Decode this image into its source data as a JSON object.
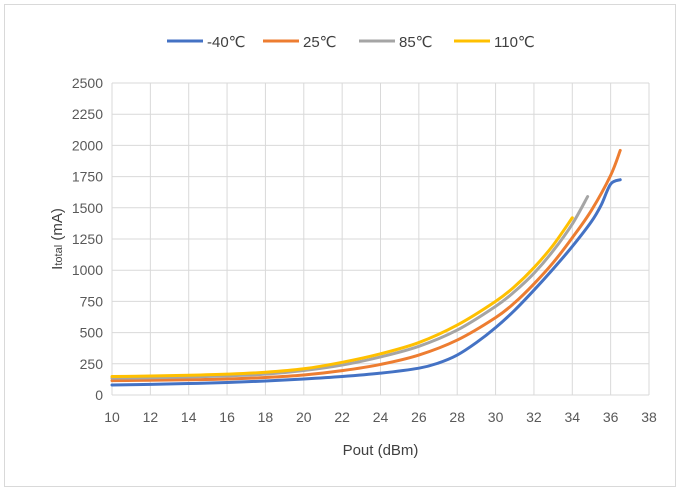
{
  "chart_data": {
    "type": "line",
    "title": "",
    "xlabel": "Pout (dBm)",
    "ylabel_main": "I",
    "ylabel_sub": "total",
    "ylabel_unit": " (mA)",
    "xlim": [
      10,
      38
    ],
    "ylim": [
      0,
      2500
    ],
    "xticks": [
      10,
      12,
      14,
      16,
      18,
      20,
      22,
      24,
      26,
      28,
      30,
      32,
      34,
      36,
      38
    ],
    "yticks": [
      0,
      250,
      500,
      750,
      1000,
      1250,
      1500,
      1750,
      2000,
      2250,
      2500
    ],
    "grid": true,
    "legend_position": "top",
    "series": [
      {
        "name": "-40℃",
        "color": "#4472c4",
        "x": [
          10,
          12,
          14,
          16,
          18,
          20,
          22,
          24,
          26,
          27,
          28,
          29,
          30,
          31,
          32,
          33,
          34,
          35,
          35.5,
          36,
          36.5
        ],
        "y": [
          80,
          85,
          92,
          100,
          112,
          128,
          148,
          175,
          215,
          255,
          320,
          420,
          540,
          680,
          840,
          1010,
          1190,
          1390,
          1520,
          1690,
          1725
        ]
      },
      {
        "name": "25℃",
        "color": "#ed7d31",
        "x": [
          10,
          12,
          14,
          16,
          18,
          20,
          22,
          24,
          26,
          28,
          30,
          31,
          32,
          33,
          34,
          35,
          36,
          36.5
        ],
        "y": [
          115,
          118,
          122,
          128,
          140,
          160,
          195,
          245,
          320,
          440,
          620,
          740,
          890,
          1060,
          1260,
          1480,
          1760,
          1960
        ]
      },
      {
        "name": "85℃",
        "color": "#a5a5a5",
        "x": [
          10,
          12,
          14,
          16,
          18,
          20,
          22,
          24,
          26,
          28,
          30,
          31,
          32,
          33,
          34,
          34.8
        ],
        "y": [
          135,
          138,
          144,
          153,
          167,
          196,
          240,
          305,
          390,
          520,
          710,
          830,
          975,
          1155,
          1370,
          1590
        ]
      },
      {
        "name": "110℃",
        "color": "#ffc000",
        "x": [
          10,
          12,
          14,
          16,
          18,
          20,
          22,
          24,
          26,
          28,
          30,
          31,
          32,
          33,
          34
        ],
        "y": [
          148,
          152,
          158,
          167,
          182,
          210,
          262,
          330,
          420,
          560,
          750,
          870,
          1020,
          1200,
          1420
        ]
      }
    ]
  }
}
